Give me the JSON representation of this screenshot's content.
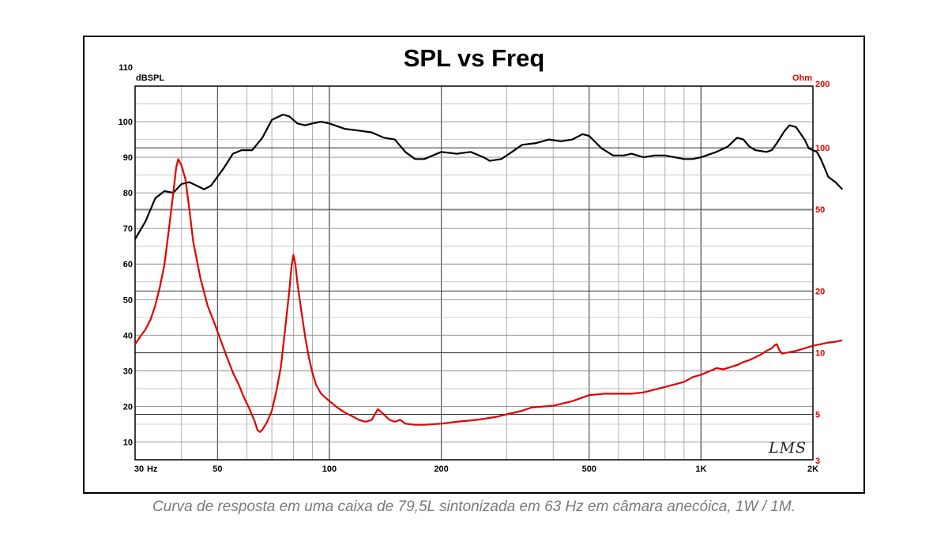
{
  "caption": "Curva de resposta em uma caixa de 79,5L sintonizada em 63 Hz em câmara anecóica, 1W / 1M.",
  "chart_data": {
    "type": "line",
    "title": "SPL vs Freq",
    "watermark": "LMS",
    "x_axis": {
      "scale": "log",
      "range": [
        30,
        2000
      ],
      "ticks": [
        {
          "value": 30,
          "label": "30"
        },
        {
          "value": 50,
          "label": "50"
        },
        {
          "value": 100,
          "label": "100"
        },
        {
          "value": 200,
          "label": "200"
        },
        {
          "value": 500,
          "label": "500"
        },
        {
          "value": 1000,
          "label": "1K"
        },
        {
          "value": 2000,
          "label": "2K"
        }
      ],
      "unit_label": "Hz"
    },
    "y_axis_left": {
      "label": "dBSPL",
      "range": [
        5,
        110
      ],
      "ticks": [
        10,
        20,
        30,
        40,
        50,
        60,
        70,
        80,
        90,
        100,
        110
      ]
    },
    "y_axis_right": {
      "label": "Ohm",
      "scale": "log",
      "range": [
        3,
        200
      ],
      "ticks": [
        3,
        5,
        10,
        20,
        50,
        100,
        200
      ],
      "color": "#e00000"
    },
    "grid": true,
    "series": [
      {
        "axis": "left",
        "color": "#000000",
        "points": [
          [
            30,
            67
          ],
          [
            32,
            72
          ],
          [
            34,
            78.5
          ],
          [
            36,
            80.5
          ],
          [
            38,
            80
          ],
          [
            40,
            82.5
          ],
          [
            42,
            83
          ],
          [
            44,
            82
          ],
          [
            46,
            81
          ],
          [
            48,
            82
          ],
          [
            52,
            87
          ],
          [
            55,
            91
          ],
          [
            58,
            92
          ],
          [
            62,
            92
          ],
          [
            66,
            95.5
          ],
          [
            70,
            100.5
          ],
          [
            75,
            102
          ],
          [
            78,
            101.5
          ],
          [
            82,
            99.5
          ],
          [
            86,
            99
          ],
          [
            90,
            99.5
          ],
          [
            95,
            100
          ],
          [
            100,
            99.5
          ],
          [
            110,
            98
          ],
          [
            120,
            97.5
          ],
          [
            130,
            97
          ],
          [
            140,
            95.5
          ],
          [
            150,
            95
          ],
          [
            160,
            91.5
          ],
          [
            170,
            89.5
          ],
          [
            180,
            89.5
          ],
          [
            200,
            91.5
          ],
          [
            220,
            91
          ],
          [
            240,
            91.5
          ],
          [
            260,
            90
          ],
          [
            270,
            89
          ],
          [
            290,
            89.5
          ],
          [
            310,
            91.5
          ],
          [
            330,
            93.5
          ],
          [
            360,
            94
          ],
          [
            390,
            95
          ],
          [
            420,
            94.5
          ],
          [
            450,
            95
          ],
          [
            480,
            96.5
          ],
          [
            500,
            96
          ],
          [
            540,
            92.5
          ],
          [
            580,
            90.5
          ],
          [
            620,
            90.5
          ],
          [
            650,
            91
          ],
          [
            700,
            90
          ],
          [
            750,
            90.5
          ],
          [
            800,
            90.5
          ],
          [
            850,
            90
          ],
          [
            900,
            89.5
          ],
          [
            950,
            89.5
          ],
          [
            1000,
            90
          ],
          [
            1100,
            91.5
          ],
          [
            1180,
            93
          ],
          [
            1250,
            95.5
          ],
          [
            1300,
            95
          ],
          [
            1350,
            93
          ],
          [
            1400,
            92
          ],
          [
            1500,
            91.5
          ],
          [
            1550,
            92
          ],
          [
            1600,
            94
          ],
          [
            1680,
            97.5
          ],
          [
            1730,
            99
          ],
          [
            1800,
            98.5
          ],
          [
            1900,
            95
          ],
          [
            1950,
            92.5
          ],
          [
            2000,
            92
          ],
          [
            2050,
            91.5
          ],
          [
            2100,
            89.5
          ],
          [
            2150,
            87
          ],
          [
            2200,
            84.5
          ],
          [
            2300,
            83
          ],
          [
            2400,
            81
          ]
        ]
      },
      {
        "axis": "right",
        "color": "#e00000",
        "points": [
          [
            30,
            11
          ],
          [
            31,
            12
          ],
          [
            32,
            13
          ],
          [
            33,
            14.5
          ],
          [
            34,
            17
          ],
          [
            35,
            21
          ],
          [
            36,
            27
          ],
          [
            37,
            40
          ],
          [
            38,
            60
          ],
          [
            38.7,
            80
          ],
          [
            39.2,
            88
          ],
          [
            40,
            82
          ],
          [
            41,
            70
          ],
          [
            42,
            50
          ],
          [
            43,
            35
          ],
          [
            45,
            23
          ],
          [
            47,
            17
          ],
          [
            49,
            14
          ],
          [
            51,
            11.5
          ],
          [
            53,
            9.5
          ],
          [
            55,
            8
          ],
          [
            57,
            7
          ],
          [
            59,
            6
          ],
          [
            61,
            5.3
          ],
          [
            63,
            4.6
          ],
          [
            64,
            4.2
          ],
          [
            65,
            4.1
          ],
          [
            66,
            4.2
          ],
          [
            68,
            4.6
          ],
          [
            70,
            5.2
          ],
          [
            72,
            6.5
          ],
          [
            74,
            8.5
          ],
          [
            76,
            13
          ],
          [
            78,
            20
          ],
          [
            79,
            26
          ],
          [
            80,
            30
          ],
          [
            81,
            27
          ],
          [
            82,
            22
          ],
          [
            84,
            16
          ],
          [
            86,
            12
          ],
          [
            88,
            9.5
          ],
          [
            90,
            8
          ],
          [
            92,
            7
          ],
          [
            95,
            6.3
          ],
          [
            100,
            5.8
          ],
          [
            105,
            5.4
          ],
          [
            110,
            5.1
          ],
          [
            115,
            4.9
          ],
          [
            120,
            4.7
          ],
          [
            125,
            4.6
          ],
          [
            130,
            4.7
          ],
          [
            135,
            5.3
          ],
          [
            140,
            5.0
          ],
          [
            145,
            4.7
          ],
          [
            150,
            4.6
          ],
          [
            155,
            4.7
          ],
          [
            160,
            4.5
          ],
          [
            170,
            4.45
          ],
          [
            180,
            4.45
          ],
          [
            200,
            4.5
          ],
          [
            220,
            4.6
          ],
          [
            250,
            4.7
          ],
          [
            280,
            4.85
          ],
          [
            300,
            5.0
          ],
          [
            330,
            5.2
          ],
          [
            350,
            5.4
          ],
          [
            370,
            5.45
          ],
          [
            400,
            5.5
          ],
          [
            450,
            5.8
          ],
          [
            500,
            6.2
          ],
          [
            550,
            6.3
          ],
          [
            600,
            6.3
          ],
          [
            650,
            6.3
          ],
          [
            700,
            6.4
          ],
          [
            750,
            6.6
          ],
          [
            800,
            6.8
          ],
          [
            850,
            7.0
          ],
          [
            900,
            7.2
          ],
          [
            950,
            7.6
          ],
          [
            1000,
            7.8
          ],
          [
            1050,
            8.1
          ],
          [
            1100,
            8.4
          ],
          [
            1150,
            8.3
          ],
          [
            1200,
            8.5
          ],
          [
            1250,
            8.7
          ],
          [
            1300,
            9.0
          ],
          [
            1350,
            9.2
          ],
          [
            1400,
            9.5
          ],
          [
            1450,
            9.8
          ],
          [
            1500,
            10.2
          ],
          [
            1550,
            10.5
          ],
          [
            1580,
            10.9
          ],
          [
            1600,
            11.0
          ],
          [
            1620,
            10.4
          ],
          [
            1650,
            9.9
          ],
          [
            1700,
            10.0
          ],
          [
            1800,
            10.2
          ],
          [
            1900,
            10.5
          ],
          [
            2000,
            10.8
          ],
          [
            2100,
            11.0
          ],
          [
            2200,
            11.2
          ],
          [
            2300,
            11.3
          ],
          [
            2400,
            11.5
          ]
        ]
      }
    ]
  }
}
